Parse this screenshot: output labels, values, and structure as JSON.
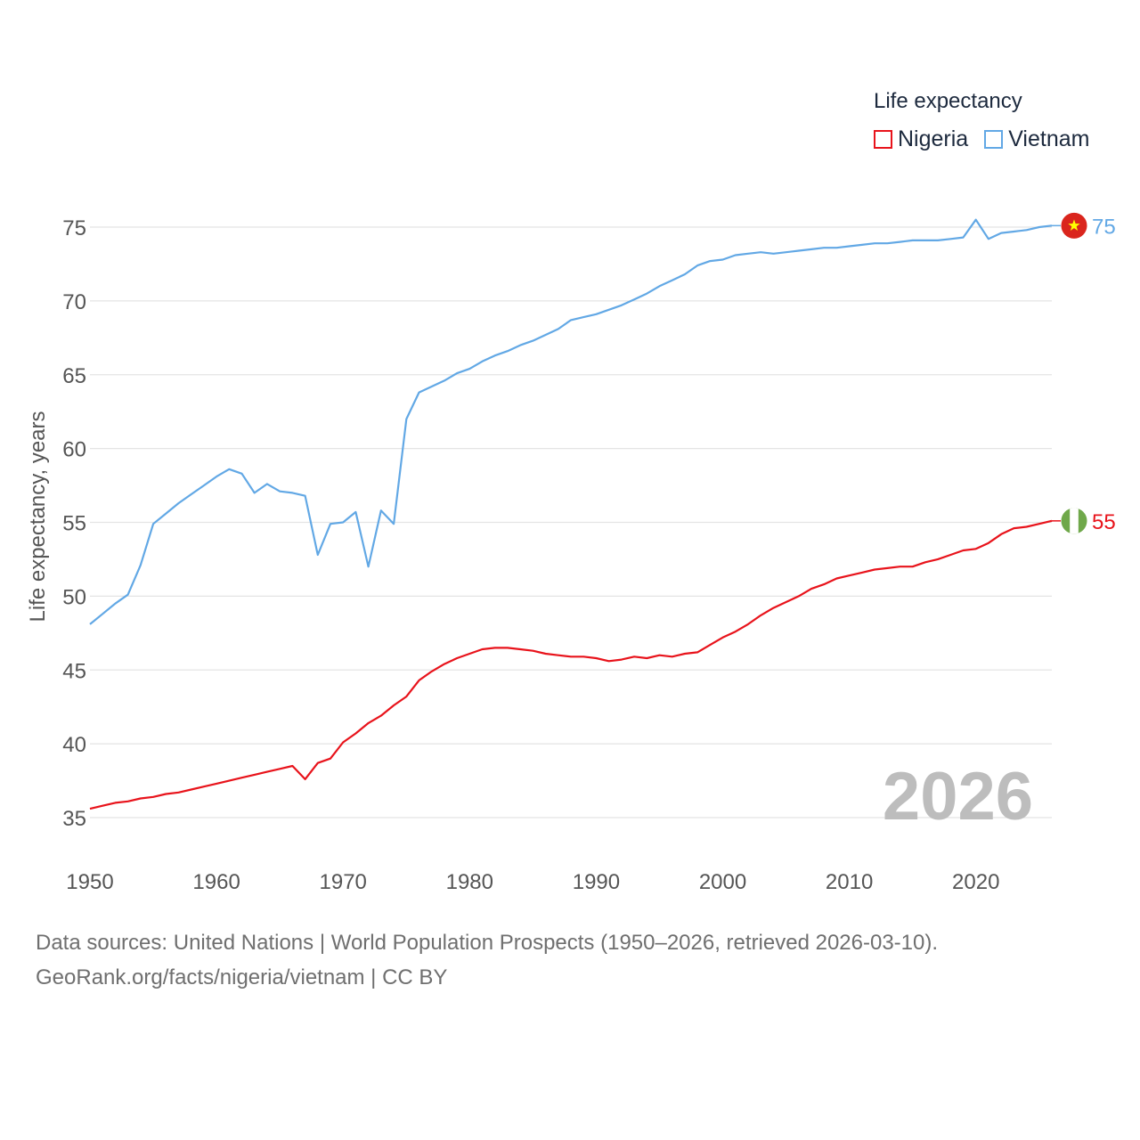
{
  "legend": {
    "title": "Life expectancy",
    "items": [
      {
        "label": "Nigeria",
        "color": "#e8131b"
      },
      {
        "label": "Vietnam",
        "color": "#62a8e5"
      }
    ]
  },
  "source": {
    "line1": "Data sources: United Nations | World Population Prospects (1950–2026, retrieved 2026-03-10).",
    "line2": "GeoRank.org/facts/nigeria/vietnam | CC BY"
  },
  "chart_data": {
    "type": "line",
    "title": "Life expectancy",
    "xlabel": "",
    "ylabel": "Life expectancy, years",
    "xlim": [
      1950,
      2026
    ],
    "ylim": [
      33,
      77
    ],
    "xticks": [
      1950,
      1960,
      1970,
      1980,
      1990,
      2000,
      2010,
      2020
    ],
    "yticks": [
      35,
      40,
      45,
      50,
      55,
      60,
      65,
      70,
      75
    ],
    "grid": true,
    "year_label": "2026",
    "x": [
      1950,
      1951,
      1952,
      1953,
      1954,
      1955,
      1956,
      1957,
      1958,
      1959,
      1960,
      1961,
      1962,
      1963,
      1964,
      1965,
      1966,
      1967,
      1968,
      1969,
      1970,
      1971,
      1972,
      1973,
      1974,
      1975,
      1976,
      1977,
      1978,
      1979,
      1980,
      1981,
      1982,
      1983,
      1984,
      1985,
      1986,
      1987,
      1988,
      1989,
      1990,
      1991,
      1992,
      1993,
      1994,
      1995,
      1996,
      1997,
      1998,
      1999,
      2000,
      2001,
      2002,
      2003,
      2004,
      2005,
      2006,
      2007,
      2008,
      2009,
      2010,
      2011,
      2012,
      2013,
      2014,
      2015,
      2016,
      2017,
      2018,
      2019,
      2020,
      2021,
      2022,
      2023,
      2024,
      2025,
      2026
    ],
    "series": [
      {
        "name": "Nigeria",
        "color": "#e8131b",
        "end_label": "55",
        "values": [
          35.6,
          35.8,
          36.0,
          36.1,
          36.3,
          36.4,
          36.6,
          36.7,
          36.9,
          37.1,
          37.3,
          37.5,
          37.7,
          37.9,
          38.1,
          38.3,
          38.5,
          37.6,
          38.7,
          39.0,
          40.1,
          40.7,
          41.4,
          41.9,
          42.6,
          43.2,
          44.3,
          44.9,
          45.4,
          45.8,
          46.1,
          46.4,
          46.5,
          46.5,
          46.4,
          46.3,
          46.1,
          46.0,
          45.9,
          45.9,
          45.8,
          45.6,
          45.7,
          45.9,
          45.8,
          46.0,
          45.9,
          46.1,
          46.2,
          46.7,
          47.2,
          47.6,
          48.1,
          48.7,
          49.2,
          49.6,
          50.0,
          50.5,
          50.8,
          51.2,
          51.4,
          51.6,
          51.8,
          51.9,
          52.0,
          52.0,
          52.3,
          52.5,
          52.8,
          53.1,
          53.2,
          53.6,
          54.2,
          54.6,
          54.7,
          54.9,
          55.1
        ]
      },
      {
        "name": "Vietnam",
        "color": "#62a8e5",
        "end_label": "75",
        "values": [
          48.1,
          48.8,
          49.5,
          50.1,
          52.1,
          54.9,
          55.6,
          56.3,
          56.9,
          57.5,
          58.1,
          58.6,
          58.3,
          57.0,
          57.6,
          57.1,
          57.0,
          56.8,
          52.8,
          54.9,
          55.0,
          55.7,
          52.0,
          55.8,
          54.9,
          62.0,
          63.8,
          64.2,
          64.6,
          65.1,
          65.4,
          65.9,
          66.3,
          66.6,
          67.0,
          67.3,
          67.7,
          68.1,
          68.7,
          68.9,
          69.1,
          69.4,
          69.7,
          70.1,
          70.5,
          71.0,
          71.4,
          71.8,
          72.4,
          72.7,
          72.8,
          73.1,
          73.2,
          73.3,
          73.2,
          73.3,
          73.4,
          73.5,
          73.6,
          73.6,
          73.7,
          73.8,
          73.9,
          73.9,
          74.0,
          74.1,
          74.1,
          74.1,
          74.2,
          74.3,
          75.5,
          74.2,
          74.6,
          74.7,
          74.8,
          75.0,
          75.1
        ]
      }
    ]
  },
  "colors": {
    "grid": "#e4e4e4",
    "tick_text": "#555555",
    "year_label": "#bdbdbd",
    "vietnam_flag_red": "#da251d",
    "vietnam_flag_star": "#ffff00",
    "nigeria_flag_green": "#6fa84a"
  }
}
